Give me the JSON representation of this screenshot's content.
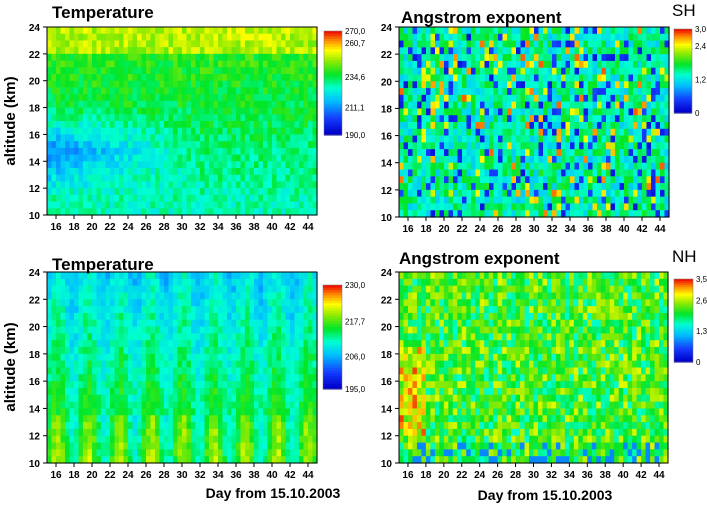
{
  "figure": {
    "ylabel_top": "altitude (km)",
    "ylabel_bottom": "altitude (km)",
    "xlabel_left": "Day from 15.10.2003",
    "xlabel_right": "Day from 15.10.2003"
  },
  "chart_data": [
    {
      "id": "temp_sh",
      "type": "heatmap",
      "title": "Temperature",
      "hemisphere": "",
      "variable": "temperature",
      "x_range": [
        15,
        45
      ],
      "y_range": [
        10,
        24
      ],
      "xticks": [
        "16",
        "18",
        "20",
        "22",
        "24",
        "26",
        "28",
        "30",
        "32",
        "34",
        "36",
        "38",
        "40",
        "42",
        "44"
      ],
      "yticks": [
        "10",
        "12",
        "14",
        "16",
        "18",
        "20",
        "22",
        "24"
      ],
      "color_scale": {
        "min": 190.0,
        "max": 270.0,
        "labels": [
          "270,0",
          "260,7",
          "234,6",
          "211,1",
          "190,0"
        ]
      }
    },
    {
      "id": "ang_sh",
      "type": "heatmap",
      "title": "Angstrom exponent",
      "hemisphere": "SH",
      "variable": "angstrom",
      "x_range": [
        15,
        45
      ],
      "y_range": [
        10,
        24
      ],
      "xticks": [
        "16",
        "18",
        "20",
        "22",
        "24",
        "26",
        "28",
        "30",
        "32",
        "34",
        "36",
        "38",
        "40",
        "42",
        "44"
      ],
      "yticks": [
        "10",
        "12",
        "14",
        "16",
        "18",
        "20",
        "22",
        "24"
      ],
      "color_scale": {
        "min": 0,
        "max": 3.0,
        "labels": [
          "0",
          "1,2",
          "2,4",
          "3,0"
        ]
      }
    },
    {
      "id": "temp_nh",
      "type": "heatmap",
      "title": "Temperature",
      "hemisphere": "",
      "variable": "temperature",
      "x_range": [
        15,
        45
      ],
      "y_range": [
        10,
        24
      ],
      "xticks": [
        "16",
        "18",
        "20",
        "22",
        "24",
        "26",
        "28",
        "30",
        "32",
        "34",
        "36",
        "38",
        "40",
        "42",
        "44"
      ],
      "yticks": [
        "10",
        "12",
        "14",
        "16",
        "18",
        "20",
        "22",
        "24"
      ],
      "color_scale": {
        "min": 195.0,
        "max": 230.0,
        "labels": [
          "230,0",
          "217,7",
          "206,0",
          "195,0"
        ]
      }
    },
    {
      "id": "ang_nh",
      "type": "heatmap",
      "title": "Angstrom exponent",
      "hemisphere": "NH",
      "variable": "angstrom",
      "x_range": [
        15,
        45
      ],
      "y_range": [
        10,
        24
      ],
      "xticks": [
        "16",
        "18",
        "20",
        "22",
        "24",
        "26",
        "28",
        "30",
        "32",
        "34",
        "36",
        "38",
        "40",
        "42",
        "44"
      ],
      "yticks": [
        "10",
        "12",
        "14",
        "16",
        "18",
        "20",
        "22",
        "24"
      ],
      "color_scale": {
        "min": 0,
        "max": 3.5,
        "labels": [
          "0",
          "1,3",
          "2,6",
          "3,5"
        ]
      }
    }
  ]
}
